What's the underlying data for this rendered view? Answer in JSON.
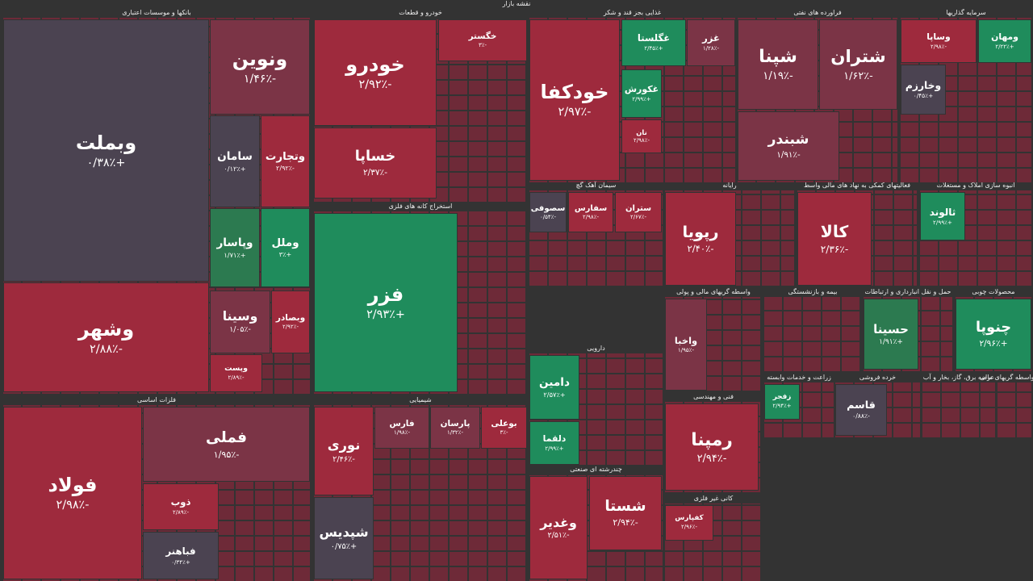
{
  "title": "نقشه بازار",
  "sectors": [
    {
      "title": "بانکها و موسسات اعتباری",
      "tiles": [
        {
          "name": "وبملت",
          "change": "+۰/۳۸٪",
          "color": "#4b4351"
        },
        {
          "name": "ونوین",
          "change": "-۱/۴۶٪",
          "color": "#7b3446"
        },
        {
          "name": "سامان",
          "change": "+۰/۱۲٪",
          "color": "#4b4351"
        },
        {
          "name": "وتجارت",
          "change": "-۲/۹۲٪",
          "color": "#9e2a3d"
        },
        {
          "name": "وپاسار",
          "change": "+۱/۷۱٪",
          "color": "#2c7a50"
        },
        {
          "name": "وملل",
          "change": "+۳٪",
          "color": "#1f8c5c"
        },
        {
          "name": "وشهر",
          "change": "-۲/۸۸٪",
          "color": "#9e2a3d"
        },
        {
          "name": "وسینا",
          "change": "-۱/۰۵٪",
          "color": "#7b3446"
        },
        {
          "name": "وبصادر",
          "change": "-۲/۹۲٪",
          "color": "#9e2a3d"
        },
        {
          "name": "وپست",
          "change": "-۲/۸۹٪",
          "color": "#9e2a3d"
        }
      ]
    },
    {
      "title": "خودرو و قطعات",
      "tiles": [
        {
          "name": "خودرو",
          "change": "-۲/۹۲٪",
          "color": "#9e2a3d"
        },
        {
          "name": "خساپا",
          "change": "-۲/۳۷٪",
          "color": "#9e2a3d"
        },
        {
          "name": "خگستر",
          "change": "-۳٪",
          "color": "#9e2a3d"
        }
      ]
    },
    {
      "title": "استخراج کانه های فلزی",
      "tiles": [
        {
          "name": "فزر",
          "change": "+۲/۹۳٪",
          "color": "#1f8c5c"
        }
      ]
    },
    {
      "title": "فلزات اساسی",
      "tiles": [
        {
          "name": "فولاد",
          "change": "-۲/۹۸٪",
          "color": "#9e2a3d"
        },
        {
          "name": "فملی",
          "change": "-۱/۹۵٪",
          "color": "#7b3446"
        },
        {
          "name": "ذوب",
          "change": "-۲/۸۹٪",
          "color": "#9e2a3d"
        },
        {
          "name": "فباهنر",
          "change": "+۰/۳۴٪",
          "color": "#4b4351"
        }
      ]
    },
    {
      "title": "شیمیایی",
      "tiles": [
        {
          "name": "نوری",
          "change": "-۲/۴۶٪",
          "color": "#9e2a3d"
        },
        {
          "name": "شپدیس",
          "change": "+۰/۷۵٪",
          "color": "#4b4351"
        },
        {
          "name": "فارس",
          "change": "-۱/۹۸٪",
          "color": "#7b3446"
        },
        {
          "name": "پارسان",
          "change": "-۱/۳۲٪",
          "color": "#7b3446"
        },
        {
          "name": "بوعلی",
          "change": "-۳٪",
          "color": "#9e2a3d"
        }
      ]
    },
    {
      "title": "غذایی بجز قند و شکر",
      "tiles": [
        {
          "name": "خودکفا",
          "change": "-۲/۹۷٪",
          "color": "#9e2a3d"
        },
        {
          "name": "غگلستا",
          "change": "+۲/۴۵٪",
          "color": "#1f8c5c"
        },
        {
          "name": "غزر",
          "change": "-۱/۲۸٪",
          "color": "#7b3446"
        },
        {
          "name": "غکورش",
          "change": "+۲/۹۹٪",
          "color": "#1f8c5c"
        },
        {
          "name": "نان",
          "change": "-۲/۹۸٪",
          "color": "#9e2a3d"
        }
      ]
    },
    {
      "title": "فراورده های نفتی",
      "tiles": [
        {
          "name": "شپنا",
          "change": "-۱/۱۹٪",
          "color": "#7b3446"
        },
        {
          "name": "شتران",
          "change": "-۱/۶۲٪",
          "color": "#7b3446"
        },
        {
          "name": "شبندر",
          "change": "-۱/۹۱٪",
          "color": "#7b3446"
        }
      ]
    },
    {
      "title": "سرمایه گذاریها",
      "tiles": [
        {
          "name": "وساپا",
          "change": "-۲/۹۸٪",
          "color": "#9e2a3d"
        },
        {
          "name": "ومهان",
          "change": "+۲/۲۲٪",
          "color": "#1f8c5c"
        },
        {
          "name": "وخارزم",
          "change": "+۰/۴۵٪",
          "color": "#4b4351"
        }
      ]
    },
    {
      "title": "سیمان آهک گچ",
      "tiles": [
        {
          "name": "سصوفی",
          "change": "-۰/۵۴٪",
          "color": "#4b4351"
        },
        {
          "name": "سفارس",
          "change": "-۲/۹۸٪",
          "color": "#9e2a3d"
        },
        {
          "name": "ستران",
          "change": "-۲/۶۷٪",
          "color": "#9e2a3d"
        }
      ]
    },
    {
      "title": "رایانه",
      "tiles": [
        {
          "name": "رپویا",
          "change": "-۲/۴۰٪",
          "color": "#9e2a3d"
        }
      ]
    },
    {
      "title": "فعالیتهای کمکی به نهاد های مالی واسط",
      "tiles": [
        {
          "name": "کالا",
          "change": "-۲/۳۶٪",
          "color": "#9e2a3d"
        }
      ]
    },
    {
      "title": "انبوه سازی املاک و مستغلات",
      "tiles": [
        {
          "name": "ثالوند",
          "change": "+۲/۹۹٪",
          "color": "#1f8c5c"
        }
      ]
    },
    {
      "title": "واسطه گریهای مالی و پولی",
      "tiles": [
        {
          "name": "واخبا",
          "change": "-۱/۹۵٪",
          "color": "#7b3446"
        }
      ]
    },
    {
      "title": "بیمه و بازنشستگی",
      "tiles": []
    },
    {
      "title": "حمل و نقل انبارداری و ارتباطات",
      "tiles": [
        {
          "name": "حسینا",
          "change": "+۱/۹۱٪",
          "color": "#2c7a50"
        }
      ]
    },
    {
      "title": "محصولات چوبی",
      "tiles": [
        {
          "name": "چنوپا",
          "change": "+۲/۹۶٪",
          "color": "#1f8c5c"
        }
      ]
    },
    {
      "title": "دارویی",
      "tiles": [
        {
          "name": "دامین",
          "change": "+۲/۵۷٪",
          "color": "#1f8c5c"
        },
        {
          "name": "دلقما",
          "change": "+۲/۹۹٪",
          "color": "#1f8c5c"
        }
      ]
    },
    {
      "title": "چندرشته ای صنعتی",
      "tiles": [
        {
          "name": "وغدیر",
          "change": "-۲/۵۱٪",
          "color": "#9e2a3d"
        },
        {
          "name": "شستا",
          "change": "-۲/۹۴٪",
          "color": "#9e2a3d"
        }
      ]
    },
    {
      "title": "فنی و مهندسی",
      "tiles": [
        {
          "name": "رمپنا",
          "change": "-۲/۹۴٪",
          "color": "#9e2a3d"
        }
      ]
    },
    {
      "title": "کانی غیر فلزی",
      "tiles": [
        {
          "name": "کفپارس",
          "change": "-۲/۹۶٪",
          "color": "#9e2a3d"
        }
      ]
    },
    {
      "title": "زراعت و خدمات وابسته",
      "tiles": [
        {
          "name": "زفجر",
          "change": "+۲/۹۴٪",
          "color": "#1f8c5c"
        }
      ]
    },
    {
      "title": "خرده فروشی",
      "tiles": [
        {
          "name": "قاسم",
          "change": "-۰/۸۸٪",
          "color": "#4b4351"
        }
      ]
    },
    {
      "title": "عرضه برق، گاز، بخار و آب",
      "tiles": []
    },
    {
      "title": "سایر واسطه گریهای مالی",
      "tiles": []
    }
  ]
}
